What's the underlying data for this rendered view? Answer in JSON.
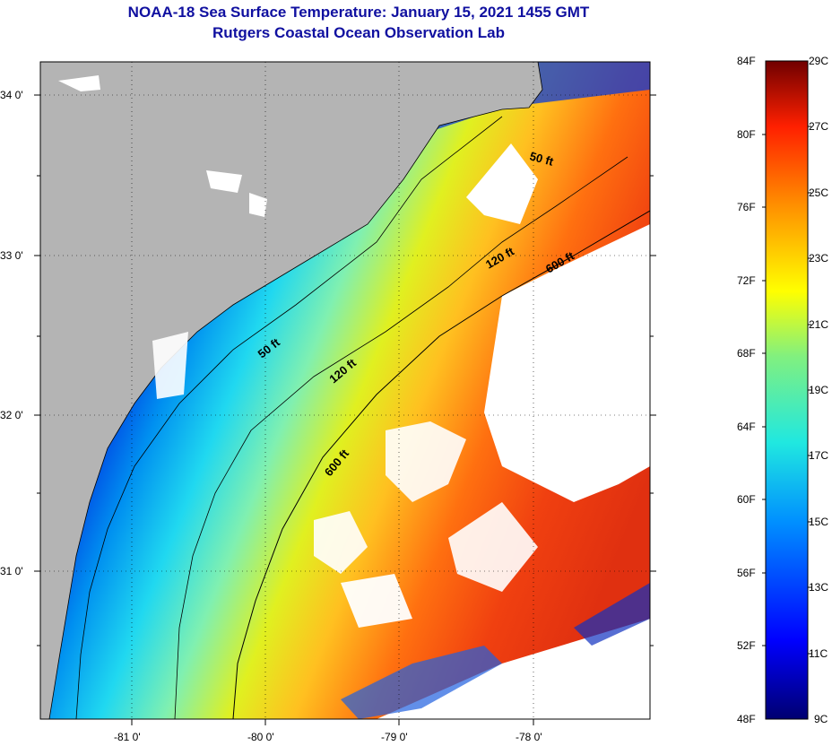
{
  "title": "NOAA-18 Sea Surface Temperature:  January 15, 2021 1455 GMT",
  "subtitle": "Rutgers Coastal Ocean Observation Lab",
  "lat_labels": [
    "34 0'",
    "33 0'",
    "32 0'",
    "31 0'"
  ],
  "lon_labels": [
    "-81 0'",
    "-80 0'",
    "-79 0'",
    "-78 0'"
  ],
  "contour_labels": [
    "50 ft",
    "120 ft",
    "600 ft",
    "50 ft",
    "120 ft",
    "600 ft"
  ],
  "colorbar": {
    "f_labels": [
      "84F",
      "80F",
      "76F",
      "72F",
      "68F",
      "64F",
      "60F",
      "56F",
      "52F",
      "48F"
    ],
    "c_labels": [
      "29C",
      "27C",
      "25C",
      "23C",
      "21C",
      "19C",
      "17C",
      "15C",
      "13C",
      "11C",
      "9C"
    ],
    "f_range": [
      48,
      84
    ],
    "c_range": [
      9,
      29
    ]
  },
  "colors": {
    "land": "#b4b4b4",
    "cloud": "#ffffff",
    "title": "#1010a0"
  }
}
